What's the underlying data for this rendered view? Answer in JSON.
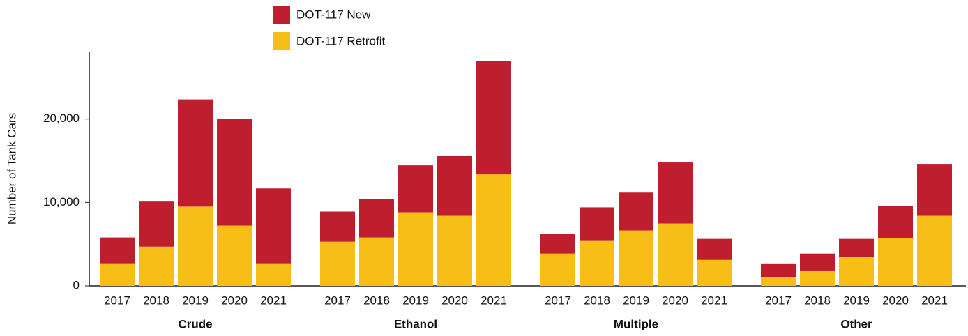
{
  "chart_data": {
    "type": "bar",
    "stacked": true,
    "y_label": "Number of Tank Cars",
    "groups": [
      "Crude",
      "Ethanol",
      "Multiple",
      "Other"
    ],
    "categories": [
      "2017",
      "2018",
      "2019",
      "2020",
      "2021",
      "2017",
      "2018",
      "2019",
      "2020",
      "2021",
      "2017",
      "2018",
      "2019",
      "2020",
      "2021",
      "2017",
      "2018",
      "2019",
      "2020",
      "2021"
    ],
    "series": [
      {
        "name": "DOT-117 Retrofit",
        "color": "#f6be17",
        "values": [
          2700,
          4700,
          9500,
          7230,
          2700,
          5300,
          5800,
          8820,
          8400,
          13360,
          3870,
          5380,
          6640,
          7480,
          3110,
          1010,
          1760,
          3450,
          5710,
          8400
        ]
      },
      {
        "name": "DOT-117 New",
        "color": "#be1e2d",
        "values": [
          3100,
          5400,
          12850,
          12770,
          8980,
          3600,
          4620,
          5630,
          7150,
          13610,
          2350,
          4030,
          4540,
          7310,
          2520,
          1680,
          2110,
          2180,
          3870,
          6220
        ]
      }
    ],
    "ylim": [
      0,
      28000
    ],
    "yticks": [
      0,
      {
        "value": 10000,
        "label": "10,000"
      },
      {
        "value": 20000,
        "label": "20,000"
      }
    ],
    "grid": false,
    "legend": "top"
  }
}
